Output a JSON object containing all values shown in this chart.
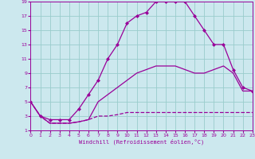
{
  "xlabel": "Windchill (Refroidissement éolien,°C)",
  "bg_color": "#cce8ee",
  "line_color": "#990099",
  "grid_color": "#99cccc",
  "xmin": 0,
  "xmax": 23,
  "ymin": 1,
  "ymax": 19,
  "xticks": [
    0,
    1,
    2,
    3,
    4,
    5,
    6,
    7,
    8,
    9,
    10,
    11,
    12,
    13,
    14,
    15,
    16,
    17,
    18,
    19,
    20,
    21,
    22,
    23
  ],
  "yticks": [
    1,
    3,
    5,
    7,
    9,
    11,
    13,
    15,
    17,
    19
  ],
  "series": [
    {
      "x": [
        0,
        1,
        2,
        3,
        4,
        5,
        6,
        7,
        8,
        9,
        10,
        11,
        12,
        13,
        14,
        15,
        16,
        17,
        18,
        19,
        20,
        21,
        22,
        23
      ],
      "y": [
        5,
        3,
        2,
        2,
        2,
        2.2,
        2.5,
        3,
        3,
        3.2,
        3.5,
        3.5,
        3.5,
        3.5,
        3.5,
        3.5,
        3.5,
        3.5,
        3.5,
        3.5,
        3.5,
        3.5,
        3.5,
        3.5
      ],
      "marker": null,
      "linestyle": "--",
      "linewidth": 0.9
    },
    {
      "x": [
        0,
        1,
        2,
        3,
        4,
        5,
        6,
        7,
        8,
        9,
        10,
        11,
        12,
        13,
        14,
        15,
        16,
        17,
        18,
        19,
        20,
        21,
        22,
        23
      ],
      "y": [
        5,
        3,
        2,
        2,
        2,
        2.2,
        2.5,
        5,
        6,
        7,
        8,
        9,
        9.5,
        10,
        10,
        10,
        9.5,
        9,
        9,
        9.5,
        10,
        9,
        6.5,
        6.5
      ],
      "marker": null,
      "linestyle": "-",
      "linewidth": 0.9
    },
    {
      "x": [
        0,
        1,
        2,
        3,
        4,
        5,
        6,
        7,
        8,
        9,
        10,
        11,
        12,
        13,
        14,
        15,
        16,
        17,
        18,
        19,
        20,
        21,
        22,
        23
      ],
      "y": [
        5,
        3,
        2.5,
        2.5,
        2.5,
        4,
        6,
        8,
        11,
        13,
        16,
        17,
        17.5,
        19,
        19,
        19,
        19,
        17,
        15,
        13,
        13,
        9.5,
        7,
        6.5
      ],
      "marker": "D",
      "linestyle": "-",
      "linewidth": 0.9,
      "markersize": 2
    }
  ]
}
